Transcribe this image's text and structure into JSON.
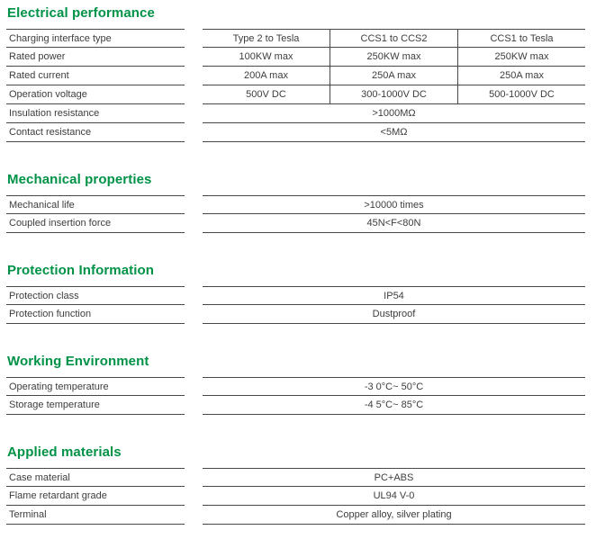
{
  "colors": {
    "accent_green": "#009247",
    "line": "#474747",
    "text": "#3d3d3d",
    "background": "#ffffff"
  },
  "sections": [
    {
      "title": "Electrical performance",
      "rows": [
        {
          "label": "Charging interface type",
          "values": [
            "Type 2 to Tesla",
            "CCS1 to CCS2",
            "CCS1 to Tesla"
          ]
        },
        {
          "label": "Rated power",
          "values": [
            "100KW max",
            "250KW max",
            "250KW max"
          ]
        },
        {
          "label": "Rated current",
          "values": [
            "200A max",
            "250A max",
            "250A max"
          ]
        },
        {
          "label": "Operation voltage",
          "values": [
            "500V DC",
            "300-1000V DC",
            "500-1000V DC"
          ]
        },
        {
          "label": "Insulation resistance",
          "values": [
            ">1000MΩ"
          ]
        },
        {
          "label": "Contact resistance",
          "values": [
            "<5MΩ"
          ]
        }
      ]
    },
    {
      "title": "Mechanical properties",
      "rows": [
        {
          "label": "Mechanical life",
          "values": [
            ">10000 times"
          ]
        },
        {
          "label": "Coupled insertion force",
          "values": [
            "45N<F<80N"
          ]
        }
      ]
    },
    {
      "title": "Protection Information",
      "rows": [
        {
          "label": "Protection class",
          "values": [
            "IP54"
          ]
        },
        {
          "label": "Protection function",
          "values": [
            "Dustproof"
          ]
        }
      ]
    },
    {
      "title": "Working Environment",
      "rows": [
        {
          "label": "Operating temperature",
          "values": [
            "-3 0°C~ 50°C"
          ]
        },
        {
          "label": "Storage temperature",
          "values": [
            "-4 5°C~ 85°C"
          ]
        }
      ]
    },
    {
      "title": "Applied materials",
      "rows": [
        {
          "label": "Case material",
          "values": [
            "PC+ABS"
          ]
        },
        {
          "label": "Flame retardant grade",
          "values": [
            "UL94 V-0"
          ]
        },
        {
          "label": "Terminal",
          "values": [
            "Copper alloy, silver plating"
          ]
        }
      ]
    }
  ]
}
